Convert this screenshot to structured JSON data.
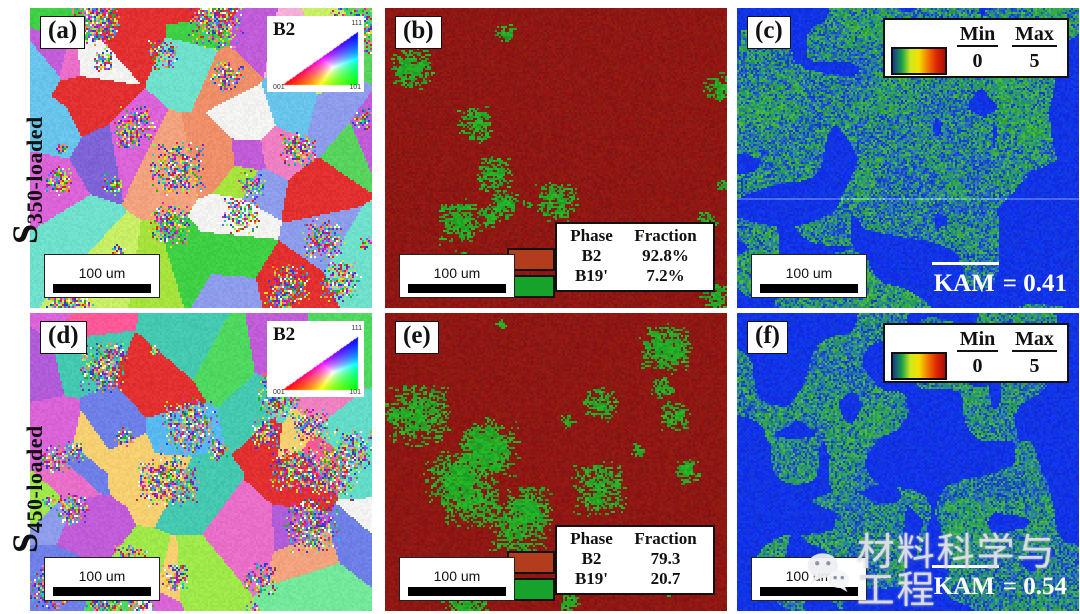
{
  "row_labels": [
    {
      "main": "S",
      "sub": "350-loaded"
    },
    {
      "main": "S",
      "sub": "450-loaded"
    }
  ],
  "panels": [
    {
      "letter": "(a)",
      "scalebar": "100 um",
      "ipf": {
        "title": "B2",
        "c001": "001",
        "c111": "111",
        "c101": "101"
      }
    },
    {
      "letter": "(b)",
      "scalebar": "100 um",
      "legend": {
        "h1": "Phase",
        "h2": "Fraction",
        "r1": {
          "name": "B2",
          "value": "92.8%"
        },
        "r2": {
          "name": "B19'",
          "value": "7.2%"
        }
      }
    },
    {
      "letter": "(c)",
      "scalebar": "100 um",
      "minmax": {
        "min_label": "Min",
        "max_label": "Max",
        "min": "0",
        "max": "5"
      },
      "kam_label": "KAM",
      "kam_value": "= 0.41"
    },
    {
      "letter": "(d)",
      "scalebar": "100 um",
      "ipf": {
        "title": "B2",
        "c001": "001",
        "c111": "111",
        "c101": "101"
      }
    },
    {
      "letter": "(e)",
      "scalebar": "100 um",
      "legend": {
        "h1": "Phase",
        "h2": "Fraction",
        "r1": {
          "name": "B2",
          "value": "79.3"
        },
        "r2": {
          "name": "B19'",
          "value": "20.7"
        }
      }
    },
    {
      "letter": "(f)",
      "scalebar": "100 um",
      "minmax": {
        "min_label": "Min",
        "max_label": "Max",
        "min": "0",
        "max": "5"
      },
      "kam_label": "KAM",
      "kam_value": "= 0.54"
    }
  ],
  "watermark": {
    "text": "材料科学与工程",
    "icon": "wechat-icon"
  },
  "render": {
    "legend_red": "#b23c1c",
    "legend_green": "#17a22b",
    "phase_base": "#8e1010",
    "phase_green": "#1ba32b",
    "kam_solid_blue": "#0a2ae6",
    "kam_gradient": [
      "#1a3a8c",
      "#17a04a",
      "#cde81e",
      "#f5e000",
      "#f07800",
      "#e02800",
      "#a80e0e"
    ],
    "vivid_speckle": [
      "#e02020",
      "#20b020",
      "#2040e0",
      "#e8e020",
      "#e020c0",
      "#20c8c8",
      "#f09020",
      "#8020d0",
      "#ffffff",
      "#ff80b0",
      "#80ff40",
      "#4080ff"
    ],
    "ipf_palettes": {
      "a": [
        "#e86ec8",
        "#db63d8",
        "#c05cd8",
        "#9f72e2",
        "#8e9cec",
        "#f2a37e",
        "#ee8f6a",
        "#58d45e",
        "#3ecf44",
        "#a6e23c",
        "#6ee0cb",
        "#ef7fc3",
        "#e23030",
        "#f2f2f0",
        "#b4abf2",
        "#68c4ea",
        "#f6b0d8",
        "#c8ee66",
        "#7f64d8",
        "#f4c690"
      ],
      "d": [
        "#4fd860",
        "#37ce6e",
        "#9fe84a",
        "#8e9cec",
        "#a4b0f0",
        "#62dcc8",
        "#44c8b0",
        "#e86ec8",
        "#f07fc0",
        "#db63d8",
        "#b05cd8",
        "#e23030",
        "#6e80e8",
        "#f2a37e",
        "#f2f2f0",
        "#58b8f0",
        "#c05cd8",
        "#f6d070",
        "#ff5898",
        "#74e89a"
      ]
    },
    "panel_params": [
      {
        "kind": "ipf",
        "seed": 101,
        "palette": "a"
      },
      {
        "kind": "phase",
        "seed": 202,
        "fraction": 0.085
      },
      {
        "kind": "kam",
        "seed": 303,
        "blob_t": 0.63,
        "blob_t2": 0.8,
        "green": 0.58,
        "line": true
      },
      {
        "kind": "ipf",
        "seed": 404,
        "palette": "d"
      },
      {
        "kind": "phase",
        "seed": 505,
        "fraction": 0.23
      },
      {
        "kind": "kam",
        "seed": 606,
        "blob_t": 0.53,
        "blob_t2": 0.72,
        "green": 0.52,
        "line": false
      }
    ]
  }
}
